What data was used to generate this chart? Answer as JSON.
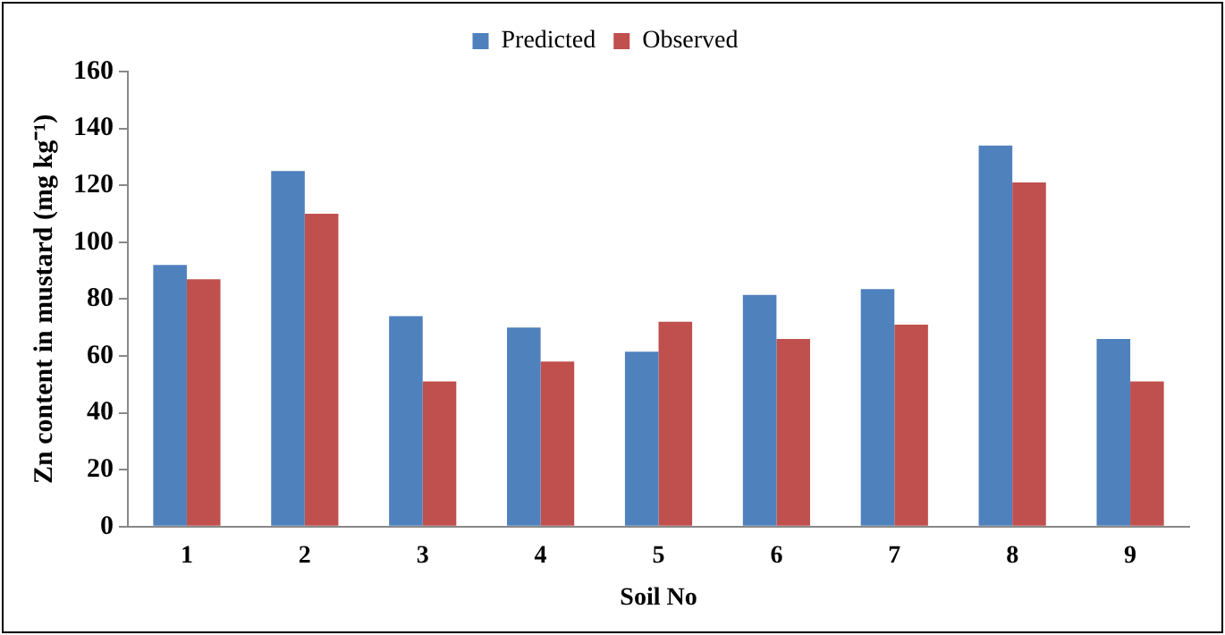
{
  "chart_data": {
    "type": "bar",
    "xlabel": "Soil No",
    "ylabel": "Zn content in mustard (mg kg⁻¹)",
    "categories": [
      "1",
      "2",
      "3",
      "4",
      "5",
      "6",
      "7",
      "8",
      "9"
    ],
    "series": [
      {
        "name": "Predicted",
        "color": "#4f81bd",
        "values": [
          92,
          125,
          74,
          70,
          61.5,
          81.5,
          83.5,
          134,
          66
        ]
      },
      {
        "name": "Observed",
        "color": "#c0504d",
        "values": [
          87,
          110,
          51,
          58,
          72,
          66,
          71,
          121,
          51
        ]
      }
    ],
    "ylim": [
      0,
      160
    ],
    "yticks": [
      0,
      20,
      40,
      60,
      80,
      100,
      120,
      140,
      160
    ],
    "grid": false,
    "legend": "top"
  }
}
